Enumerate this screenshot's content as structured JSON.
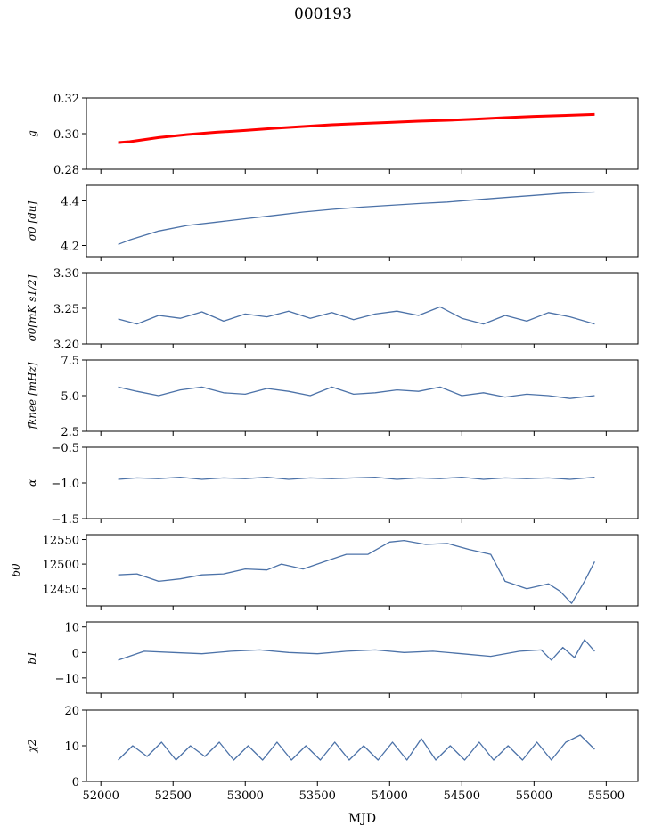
{
  "figure": {
    "title": "000193"
  },
  "chart_data": {
    "type": "line",
    "title": "000193",
    "xlabel": "MJD",
    "xlim": [
      51900,
      55720
    ],
    "xticks": [
      52000,
      52500,
      53000,
      53500,
      54000,
      54500,
      55000,
      55500
    ],
    "series_color": "#4c72a8",
    "overlay_color": "#ff0000",
    "panels": [
      {
        "ylabel": "g",
        "ylim": [
          0.28,
          0.32
        ],
        "yticks": [
          "0.28",
          "0.30",
          "0.32"
        ],
        "series": [
          {
            "name": "",
            "color": "#4c72a8",
            "x": [
              52120,
              52200,
              52400,
              52600,
              52800,
              53000,
              53200,
              53400,
              53600,
              53800,
              54000,
              54200,
              54400,
              54600,
              54800,
              55000,
              55200,
              55420
            ],
            "y": [
              0.2945,
              0.2955,
              0.2978,
              0.2995,
              0.3008,
              0.3018,
              0.303,
              0.304,
              0.305,
              0.3057,
              0.3063,
              0.307,
              0.3075,
              0.3082,
              0.309,
              0.3097,
              0.3102,
              0.311
            ]
          },
          {
            "name": "",
            "color": "#ff0000",
            "x": [
              52120,
              52200,
              52400,
              52600,
              52800,
              53000,
              53200,
              53400,
              53600,
              53800,
              54000,
              54200,
              54400,
              54600,
              54800,
              55000,
              55200,
              55420
            ],
            "y": [
              0.295,
              0.2955,
              0.2978,
              0.2995,
              0.3008,
              0.3018,
              0.303,
              0.304,
              0.305,
              0.3057,
              0.3063,
              0.307,
              0.3075,
              0.3082,
              0.309,
              0.3097,
              0.3102,
              0.3108
            ]
          }
        ]
      },
      {
        "ylabel": "σ0 [du]",
        "ylim": [
          4.15,
          4.47
        ],
        "yticks": [
          "4.2",
          "4.4"
        ],
        "series": [
          {
            "name": "",
            "color": "#4c72a8",
            "x": [
              52120,
              52200,
              52400,
              52600,
              52800,
              53000,
              53200,
              53400,
              53600,
              53800,
              54000,
              54200,
              54400,
              54600,
              54800,
              55000,
              55200,
              55420
            ],
            "y": [
              4.205,
              4.225,
              4.265,
              4.29,
              4.305,
              4.32,
              4.335,
              4.35,
              4.362,
              4.372,
              4.38,
              4.388,
              4.395,
              4.405,
              4.415,
              4.425,
              4.435,
              4.44
            ]
          }
        ]
      },
      {
        "ylabel": "σ0[mK s1/2]",
        "ylim": [
          3.2,
          3.3
        ],
        "yticks": [
          "3.20",
          "3.25",
          "3.30"
        ],
        "series": [
          {
            "name": "",
            "color": "#4c72a8",
            "x": [
              52120,
              52250,
              52400,
              52550,
              52700,
              52850,
              53000,
              53150,
              53300,
              53450,
              53600,
              53750,
              53900,
              54050,
              54200,
              54350,
              54500,
              54650,
              54800,
              54950,
              55100,
              55250,
              55420
            ],
            "y": [
              3.235,
              3.228,
              3.24,
              3.236,
              3.245,
              3.232,
              3.242,
              3.238,
              3.246,
              3.236,
              3.244,
              3.234,
              3.242,
              3.246,
              3.24,
              3.252,
              3.236,
              3.228,
              3.24,
              3.232,
              3.244,
              3.238,
              3.228
            ]
          }
        ]
      },
      {
        "ylabel": "fknee [mHz]",
        "ylim": [
          2.5,
          7.5
        ],
        "yticks": [
          "2.5",
          "5.0",
          "7.5"
        ],
        "series": [
          {
            "name": "",
            "color": "#4c72a8",
            "x": [
              52120,
              52250,
              52400,
              52550,
              52700,
              52850,
              53000,
              53150,
              53300,
              53450,
              53600,
              53750,
              53900,
              54050,
              54200,
              54350,
              54500,
              54650,
              54800,
              54950,
              55100,
              55250,
              55420
            ],
            "y": [
              5.6,
              5.3,
              5.0,
              5.4,
              5.6,
              5.2,
              5.1,
              5.5,
              5.3,
              5.0,
              5.6,
              5.1,
              5.2,
              5.4,
              5.3,
              5.6,
              5.0,
              5.2,
              4.9,
              5.1,
              5.0,
              4.8,
              5.0
            ]
          }
        ]
      },
      {
        "ylabel": "α",
        "ylim": [
          -1.5,
          -0.5
        ],
        "yticks": [
          "−1.5",
          "−1.0",
          "−0.5"
        ],
        "series": [
          {
            "name": "",
            "color": "#4c72a8",
            "x": [
              52120,
              52250,
              52400,
              52550,
              52700,
              52850,
              53000,
              53150,
              53300,
              53450,
              53600,
              53750,
              53900,
              54050,
              54200,
              54350,
              54500,
              54650,
              54800,
              54950,
              55100,
              55250,
              55420
            ],
            "y": [
              -0.95,
              -0.93,
              -0.94,
              -0.92,
              -0.95,
              -0.93,
              -0.94,
              -0.92,
              -0.95,
              -0.93,
              -0.94,
              -0.93,
              -0.92,
              -0.95,
              -0.93,
              -0.94,
              -0.92,
              -0.95,
              -0.93,
              -0.94,
              -0.93,
              -0.95,
              -0.92
            ]
          }
        ]
      },
      {
        "ylabel": "b0",
        "ylim": [
          12415,
          12560
        ],
        "yticks": [
          "12450",
          "12500",
          "12550"
        ],
        "series": [
          {
            "name": "",
            "color": "#4c72a8",
            "x": [
              52120,
              52250,
              52400,
              52550,
              52700,
              52850,
              53000,
              53150,
              53250,
              53400,
              53550,
              53700,
              53850,
              54000,
              54100,
              54250,
              54400,
              54550,
              54700,
              54800,
              54950,
              55100,
              55180,
              55260,
              55350,
              55420
            ],
            "y": [
              12478,
              12480,
              12465,
              12470,
              12478,
              12480,
              12490,
              12488,
              12500,
              12490,
              12505,
              12520,
              12520,
              12545,
              12548,
              12540,
              12542,
              12530,
              12520,
              12465,
              12450,
              12460,
              12445,
              12420,
              12465,
              12505
            ]
          }
        ]
      },
      {
        "ylabel": "b1",
        "ylim": [
          -16,
          12
        ],
        "yticks": [
          "−10",
          "0",
          "10"
        ],
        "series": [
          {
            "name": "",
            "color": "#4c72a8",
            "x": [
              52120,
              52300,
              52500,
              52700,
              52900,
              53100,
              53300,
              53500,
              53700,
              53900,
              54100,
              54300,
              54500,
              54700,
              54900,
              55050,
              55120,
              55200,
              55280,
              55350,
              55420
            ],
            "y": [
              -3.0,
              0.5,
              0.0,
              -0.5,
              0.5,
              1.0,
              0.0,
              -0.5,
              0.5,
              1.0,
              0.0,
              0.5,
              -0.5,
              -1.5,
              0.5,
              1.0,
              -3.0,
              2.0,
              -2.0,
              5.0,
              0.5
            ]
          }
        ]
      },
      {
        "ylabel": "χ2",
        "ylim": [
          0,
          20
        ],
        "yticks": [
          "0",
          "10",
          "20"
        ],
        "series": [
          {
            "name": "",
            "color": "#4c72a8",
            "x": [
              52120,
              52220,
              52320,
              52420,
              52520,
              52620,
              52720,
              52820,
              52920,
              53020,
              53120,
              53220,
              53320,
              53420,
              53520,
              53620,
              53720,
              53820,
              53920,
              54020,
              54120,
              54220,
              54320,
              54420,
              54520,
              54620,
              54720,
              54820,
              54920,
              55020,
              55120,
              55220,
              55320,
              55420
            ],
            "y": [
              6,
              10,
              7,
              11,
              6,
              10,
              7,
              11,
              6,
              10,
              6,
              11,
              6,
              10,
              6,
              11,
              6,
              10,
              6,
              11,
              6,
              12,
              6,
              10,
              6,
              11,
              6,
              10,
              6,
              11,
              6,
              11,
              13,
              9
            ]
          }
        ]
      }
    ]
  }
}
